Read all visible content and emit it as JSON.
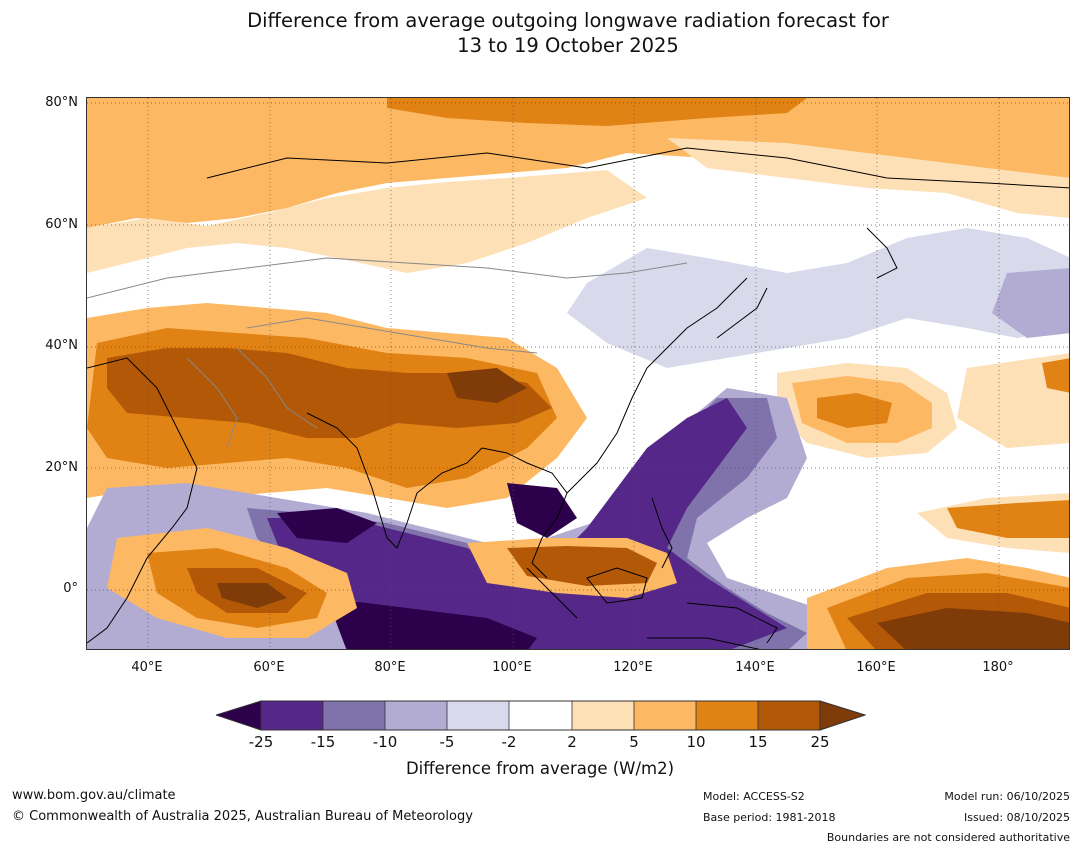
{
  "title": {
    "line1": "Difference from average outgoing longwave radiation forecast for",
    "line2": "13 to 19 October 2025"
  },
  "map": {
    "lat_labels": [
      "80°N",
      "60°N",
      "40°N",
      "20°N",
      "0°"
    ],
    "lon_labels": [
      "40°E",
      "60°E",
      "80°E",
      "100°E",
      "120°E",
      "140°E",
      "160°E",
      "180°"
    ],
    "lat_range": [
      -10,
      80
    ],
    "lon_range": [
      30,
      192
    ]
  },
  "colorbar": {
    "ticks": [
      "-25",
      "-15",
      "-10",
      "-5",
      "-2",
      "2",
      "5",
      "10",
      "15",
      "25"
    ],
    "colors": {
      "below_min": "#2d004b",
      "deep_purple": "#542788",
      "purple": "#8073ac",
      "lavender": "#b2abd2",
      "pale_lavender": "#d8daeb",
      "neutral": "#ffffff",
      "pale_orange": "#fee0b6",
      "light_orange": "#fdb863",
      "orange": "#e08214",
      "dark_orange": "#b35806",
      "above_max": "#7f3b08"
    },
    "title": "Difference from average (W/m2)"
  },
  "footer": {
    "website": "www.bom.gov.au/climate",
    "copyright": "© Commonwealth of Australia 2025, Australian Bureau of Meteorology",
    "model": "Model: ACCESS-S2",
    "base_period": "Base period: 1981-2018",
    "model_run": "Model run: 06/10/2025",
    "issued": "Issued: 08/10/2025",
    "disclaimer": "Boundaries are not considered authoritative"
  }
}
